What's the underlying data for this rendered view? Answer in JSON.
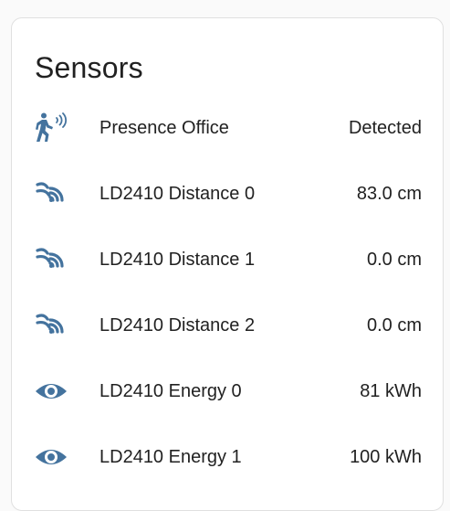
{
  "card": {
    "title": "Sensors",
    "rows": [
      {
        "icon": "motion-sensor-icon",
        "name": "Presence Office",
        "state": "Detected"
      },
      {
        "icon": "signal-distance-icon",
        "name": "LD2410 Distance 0",
        "state": "83.0 cm"
      },
      {
        "icon": "signal-distance-icon",
        "name": "LD2410 Distance 1",
        "state": "0.0 cm"
      },
      {
        "icon": "signal-distance-icon",
        "name": "LD2410 Distance 2",
        "state": "0.0 cm"
      },
      {
        "icon": "eye-icon",
        "name": "LD2410 Energy 0",
        "state": "81 kWh"
      },
      {
        "icon": "eye-icon",
        "name": "LD2410 Energy 1",
        "state": "100 kWh"
      }
    ]
  },
  "colors": {
    "icon": "#44739e",
    "text": "#212121",
    "card_border": "#e0e0e0"
  }
}
